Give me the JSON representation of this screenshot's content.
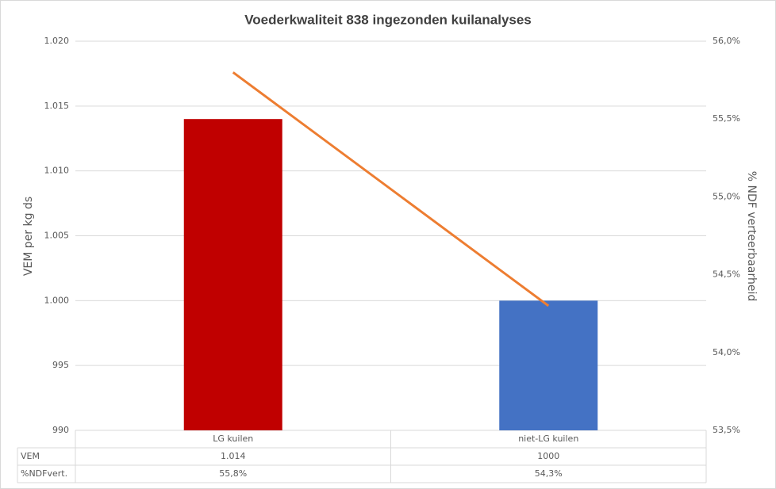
{
  "chart_data": {
    "type": "bar",
    "title": "Voederkwaliteit 838 ingezonden kuilanalyses",
    "categories": [
      "LG kuilen",
      "niet-LG kuilen"
    ],
    "series": [
      {
        "name": "VEM",
        "type": "bar",
        "colors": [
          "#c00000",
          "#4472c4"
        ],
        "values": [
          1014,
          1000
        ],
        "value_labels": [
          "1.014",
          "1000"
        ]
      },
      {
        "name": "%NDFvert.",
        "type": "line",
        "axis": "y2",
        "color": "#ed7d31",
        "values": [
          55.8,
          54.3
        ],
        "value_labels": [
          "55,8%",
          "54,3%"
        ]
      }
    ],
    "ylabel": "VEM per kg ds",
    "y2label": "% NDF verteerbaarheid",
    "ylim": [
      990,
      1020
    ],
    "yticks": [
      990,
      995,
      {
        "value": 1000,
        "label": "1.000"
      },
      {
        "value": 1005,
        "label": "1.005"
      },
      {
        "value": 1010,
        "label": "1.010"
      },
      {
        "value": 1015,
        "label": "1.015"
      },
      {
        "value": 1020,
        "label": "1.020"
      }
    ],
    "y2lim": [
      53.5,
      56
    ],
    "y2ticks": [
      {
        "value": 53.5,
        "label": "53,5%"
      },
      {
        "value": 54,
        "label": "54,0%"
      },
      {
        "value": 54.5,
        "label": "54,5%"
      },
      {
        "value": 55,
        "label": "55,0%"
      },
      {
        "value": 55.5,
        "label": "55,5%"
      },
      {
        "value": 56,
        "label": "56,0%"
      }
    ],
    "grid": true
  }
}
